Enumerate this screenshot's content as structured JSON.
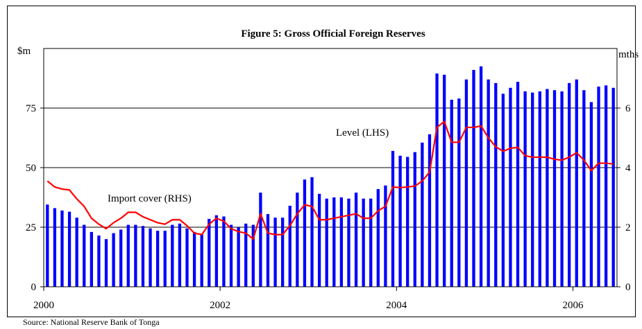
{
  "chart_data": {
    "type": "bar+line",
    "title": "Figure 5: Gross Official Foreign Reserves",
    "source": "Source: National Reserve Bank of Tonga",
    "y_left_unit": "$m",
    "y_right_unit": "mths",
    "y_left_ticks": [
      "0",
      "25",
      "50",
      "75"
    ],
    "y_right_ticks": [
      "0",
      "2",
      "4",
      "6"
    ],
    "ylim_left": [
      0,
      100
    ],
    "ylim_right": [
      0,
      8
    ],
    "x_ticks": [
      "2000",
      "2002",
      "2004",
      "2006"
    ],
    "x_range": [
      "2000-01",
      "2006-07"
    ],
    "grid": "horizontal at 25, 50, 75",
    "bar_color": "#0000ff",
    "line_color": "#ff0000",
    "annotations": {
      "level": "Level (LHS)",
      "import_cover": "Import cover (RHS)"
    },
    "series": [
      {
        "name": "Level (LHS)",
        "type": "bar",
        "axis": "left",
        "frequency": "monthly from 2000-01",
        "values": [
          34.5,
          33.0,
          32.0,
          31.5,
          29.0,
          26.0,
          23.0,
          21.5,
          20.0,
          22.5,
          24.0,
          26.0,
          26.0,
          25.5,
          24.5,
          23.5,
          23.5,
          26.0,
          26.5,
          24.5,
          23.0,
          22.0,
          28.5,
          30.0,
          29.5,
          26.0,
          25.0,
          26.5,
          26.0,
          39.5,
          30.5,
          29.0,
          29.0,
          34.0,
          39.5,
          45.0,
          46.0,
          39.0,
          37.0,
          37.5,
          37.5,
          37.0,
          39.5,
          37.0,
          37.0,
          41.0,
          42.5,
          57.0,
          55.0,
          54.5,
          56.5,
          60.5,
          64.0,
          89.5,
          89.0,
          78.5,
          79.0,
          87.0,
          91.0,
          92.5,
          87.0,
          85.5,
          81.0,
          83.5,
          86.0,
          82.0,
          81.5,
          82.0,
          83.0,
          82.5,
          82.0,
          85.5,
          87.0,
          82.5,
          77.5,
          84.0,
          84.5,
          83.5
        ]
      },
      {
        "name": "Import cover (RHS)",
        "type": "line",
        "axis": "right",
        "frequency": "monthly from 2000-01",
        "values": [
          3.55,
          3.35,
          3.28,
          3.25,
          2.95,
          2.7,
          2.3,
          2.1,
          1.95,
          2.15,
          2.3,
          2.5,
          2.5,
          2.35,
          2.25,
          2.15,
          2.1,
          2.25,
          2.25,
          2.05,
          1.8,
          1.75,
          2.1,
          2.3,
          2.2,
          1.95,
          1.85,
          1.8,
          1.6,
          2.45,
          1.8,
          1.75,
          1.75,
          2.05,
          2.45,
          2.75,
          2.7,
          2.25,
          2.25,
          2.3,
          2.35,
          2.4,
          2.45,
          2.3,
          2.3,
          2.55,
          2.7,
          3.35,
          3.33,
          3.35,
          3.38,
          3.55,
          3.85,
          5.35,
          5.55,
          4.85,
          4.85,
          5.35,
          5.35,
          5.4,
          5.0,
          4.7,
          4.55,
          4.65,
          4.68,
          4.4,
          4.35,
          4.35,
          4.35,
          4.28,
          4.25,
          4.35,
          4.5,
          4.25,
          3.9,
          4.15,
          4.15,
          4.12
        ]
      }
    ]
  }
}
